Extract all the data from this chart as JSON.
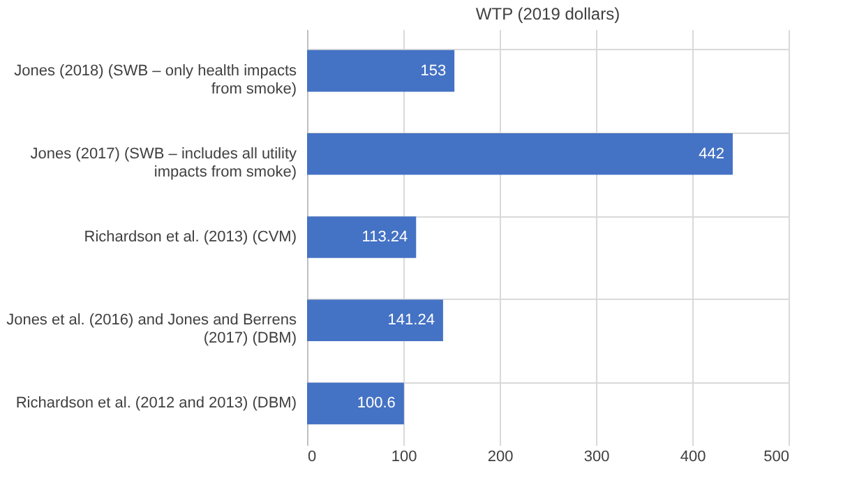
{
  "chart_data": {
    "type": "bar",
    "orientation": "horizontal",
    "title": "WTP (2019 dollars)",
    "categories": [
      "Jones (2018) (SWB – only health impacts from smoke)",
      "Jones (2017) (SWB – includes all utility impacts from smoke)",
      "Richardson et al. (2013) (CVM)",
      "Jones et al. (2016) and Jones and Berrens (2017) (DBM)",
      "Richardson et al. (2012 and 2013) (DBM)"
    ],
    "values": [
      153,
      442,
      113.24,
      141.24,
      100.6
    ],
    "value_labels": [
      "153",
      "442",
      "113.24",
      "141.24",
      "100.6"
    ],
    "color": "#4472c4",
    "xlim": [
      0,
      500
    ],
    "xticks": [
      0,
      100,
      200,
      300,
      400,
      500
    ],
    "grid": true
  }
}
